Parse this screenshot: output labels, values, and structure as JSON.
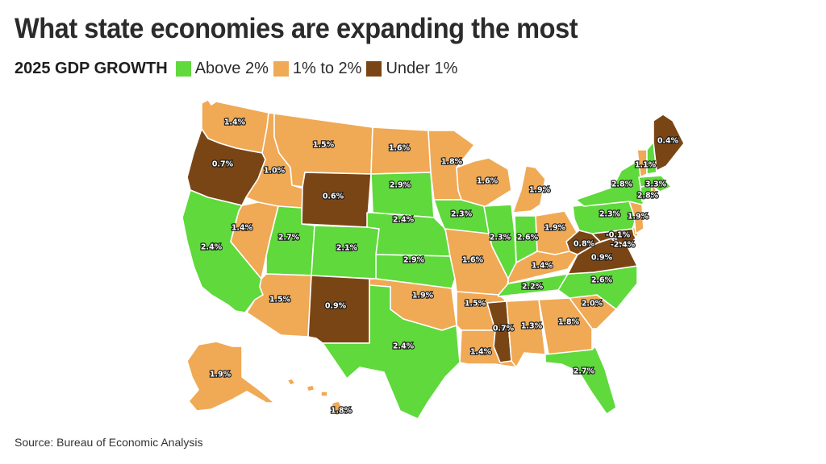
{
  "title": "What state economies are expanding the most",
  "legend": {
    "title": "2025 GDP GROWTH",
    "items": [
      {
        "label": "Above 2%",
        "color": "#5fd93c"
      },
      {
        "label": "1% to 2%",
        "color": "#f0a955"
      },
      {
        "label": "Under 1%",
        "color": "#7a4515"
      }
    ]
  },
  "colors": {
    "above": "#5fd93c",
    "mid": "#f0a955",
    "under": "#7a4515"
  },
  "source": "Source: Bureau of Economic Analysis",
  "states": [
    {
      "state": "WA",
      "label": "1.4%",
      "growth": 1.4,
      "category": "mid"
    },
    {
      "state": "OR",
      "label": "0.7%",
      "growth": 0.7,
      "category": "under"
    },
    {
      "state": "CA",
      "label": "2.4%",
      "growth": 2.4,
      "category": "above"
    },
    {
      "state": "ID",
      "label": "1.0%",
      "growth": 1.0,
      "category": "mid"
    },
    {
      "state": "NV",
      "label": "1.4%",
      "growth": 1.4,
      "category": "mid"
    },
    {
      "state": "MT",
      "label": "1.5%",
      "growth": 1.5,
      "category": "mid"
    },
    {
      "state": "WY",
      "label": "0.6%",
      "growth": 0.6,
      "category": "under"
    },
    {
      "state": "UT",
      "label": "2.7%",
      "growth": 2.7,
      "category": "above"
    },
    {
      "state": "CO",
      "label": "2.1%",
      "growth": 2.1,
      "category": "above"
    },
    {
      "state": "AZ",
      "label": "1.5%",
      "growth": 1.5,
      "category": "mid"
    },
    {
      "state": "NM",
      "label": "0.9%",
      "growth": 0.9,
      "category": "under"
    },
    {
      "state": "ND",
      "label": "1.6%",
      "growth": 1.6,
      "category": "mid"
    },
    {
      "state": "SD",
      "label": "2.9%",
      "growth": 2.9,
      "category": "above"
    },
    {
      "state": "NE",
      "label": "2.4%",
      "growth": 2.4,
      "category": "above"
    },
    {
      "state": "KS",
      "label": "2.9%",
      "growth": 2.9,
      "category": "above"
    },
    {
      "state": "OK",
      "label": "1.9%",
      "growth": 1.9,
      "category": "mid"
    },
    {
      "state": "TX",
      "label": "2.4%",
      "growth": 2.4,
      "category": "above"
    },
    {
      "state": "MN",
      "label": "1.8%",
      "growth": 1.8,
      "category": "mid"
    },
    {
      "state": "IA",
      "label": "2.3%",
      "growth": 2.3,
      "category": "above"
    },
    {
      "state": "MO",
      "label": "1.6%",
      "growth": 1.6,
      "category": "mid"
    },
    {
      "state": "AR",
      "label": "1.5%",
      "growth": 1.5,
      "category": "mid"
    },
    {
      "state": "LA",
      "label": "1.4%",
      "growth": 1.4,
      "category": "mid"
    },
    {
      "state": "WI",
      "label": "1.6%",
      "growth": 1.6,
      "category": "mid"
    },
    {
      "state": "IL",
      "label": "2.3%",
      "growth": 2.3,
      "category": "above"
    },
    {
      "state": "MI",
      "label": "1.9%",
      "growth": 1.9,
      "category": "mid"
    },
    {
      "state": "IN",
      "label": "2.6%",
      "growth": 2.6,
      "category": "above"
    },
    {
      "state": "OH",
      "label": "1.9%",
      "growth": 1.9,
      "category": "mid"
    },
    {
      "state": "KY",
      "label": "1.4%",
      "growth": 1.4,
      "category": "mid"
    },
    {
      "state": "TN",
      "label": "2.2%",
      "growth": 2.2,
      "category": "above"
    },
    {
      "state": "MS",
      "label": "0.7%",
      "growth": 0.7,
      "category": "under"
    },
    {
      "state": "AL",
      "label": "1.3%",
      "growth": 1.3,
      "category": "mid"
    },
    {
      "state": "GA",
      "label": "1.8%",
      "growth": 1.8,
      "category": "mid"
    },
    {
      "state": "FL",
      "label": "2.7%",
      "growth": 2.7,
      "category": "above"
    },
    {
      "state": "SC",
      "label": "2.0%",
      "growth": 2.0,
      "category": "mid"
    },
    {
      "state": "NC",
      "label": "2.6%",
      "growth": 2.6,
      "category": "above"
    },
    {
      "state": "VA",
      "label": "0.9%",
      "growth": 0.9,
      "category": "under"
    },
    {
      "state": "WV",
      "label": "0.8%",
      "growth": 0.8,
      "category": "under"
    },
    {
      "state": "MD",
      "label": "-0.1%",
      "growth": -0.1,
      "category": "under"
    },
    {
      "state": "DC",
      "label": "-2.4%",
      "growth": -2.4,
      "category": "under"
    },
    {
      "state": "DE",
      "label": "",
      "growth": null,
      "category": "mid"
    },
    {
      "state": "PA",
      "label": "2.3%",
      "growth": 2.3,
      "category": "above"
    },
    {
      "state": "NJ",
      "label": "1.9%",
      "growth": 1.9,
      "category": "mid"
    },
    {
      "state": "NY",
      "label": "2.8%",
      "growth": 2.8,
      "category": "above"
    },
    {
      "state": "CT",
      "label": "2.8%",
      "growth": 2.8,
      "category": "above"
    },
    {
      "state": "RI",
      "label": "",
      "growth": null,
      "category": "mid"
    },
    {
      "state": "MA",
      "label": "3.3%",
      "growth": 3.3,
      "category": "above"
    },
    {
      "state": "VT",
      "label": "1.1%",
      "growth": 1.1,
      "category": "mid"
    },
    {
      "state": "NH",
      "label": "",
      "growth": null,
      "category": "above"
    },
    {
      "state": "ME",
      "label": "0.4%",
      "growth": 0.4,
      "category": "under"
    },
    {
      "state": "AK",
      "label": "1.9%",
      "growth": 1.9,
      "category": "mid"
    },
    {
      "state": "HI",
      "label": "1.8%",
      "growth": 1.8,
      "category": "mid"
    }
  ]
}
